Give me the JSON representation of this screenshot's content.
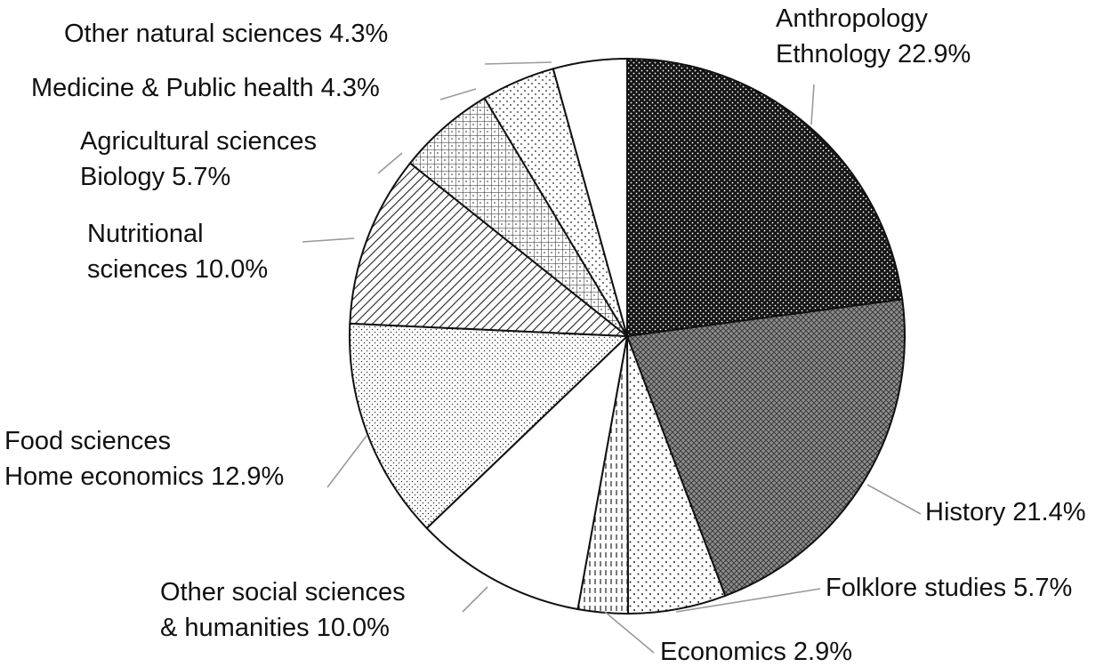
{
  "chart_data": {
    "type": "pie",
    "title": "",
    "start_angle_deg": 0,
    "direction": "clockwise",
    "colors": {
      "outline": "#111111",
      "ink": "#1a1a1a",
      "background": "#ffffff",
      "leader": "#9a9a9a"
    },
    "slices": [
      {
        "label_lines": [
          "Anthropology",
          "Ethnology 22.9%"
        ],
        "value": 22.9,
        "pattern": "dense-dots-dark"
      },
      {
        "label_lines": [
          "History 21.4%"
        ],
        "value": 21.4,
        "pattern": "crosshatch-gray"
      },
      {
        "label_lines": [
          "Folklore studies 5.7%"
        ],
        "value": 5.7,
        "pattern": "sparse-dots"
      },
      {
        "label_lines": [
          "Economics 2.9%"
        ],
        "value": 2.9,
        "pattern": "vertical-dashes"
      },
      {
        "label_lines": [
          "Other social sciences",
          "& humanities 10.0%"
        ],
        "value": 10.0,
        "pattern": "white"
      },
      {
        "label_lines": [
          "Food sciences",
          "Home economics 12.9%"
        ],
        "value": 12.9,
        "pattern": "fine-dots"
      },
      {
        "label_lines": [
          "Nutritional",
          "sciences 10.0%"
        ],
        "value": 10.0,
        "pattern": "diagonal-hatch"
      },
      {
        "label_lines": [
          "Agricultural sciences",
          "Biology 5.7%"
        ],
        "value": 5.7,
        "pattern": "grid"
      },
      {
        "label_lines": [
          "Medicine & Public health 4.3%"
        ],
        "value": 4.3,
        "pattern": "sparse-dots-small"
      },
      {
        "label_lines": [
          "Other natural sciences 4.3%"
        ],
        "value": 4.3,
        "pattern": "white"
      }
    ]
  }
}
